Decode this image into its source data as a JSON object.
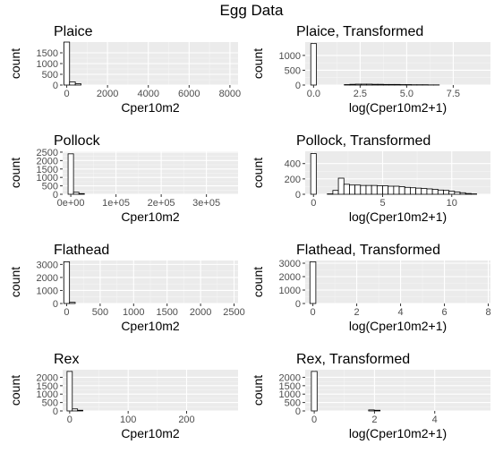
{
  "title": "Egg Data",
  "style": {
    "panel_background": "#ebebeb",
    "grid_major": "#ffffff",
    "grid_minor": "#f5f5f5",
    "bar_fill": "#ffffff",
    "bar_outline": "#000000",
    "tick_text": "#4d4d4d",
    "title_text": "#000000"
  },
  "chart_data": [
    {
      "type": "bar",
      "title": "Plaice",
      "xlabel": "Cper10m2",
      "ylabel": "count",
      "xlim": [
        -200,
        8400
      ],
      "ylim": [
        0,
        2000
      ],
      "xticks": [
        0,
        2000,
        4000,
        6000,
        8000
      ],
      "xtick_labels": [
        "0",
        "2000",
        "4000",
        "6000",
        "8000"
      ],
      "yticks": [
        0,
        500,
        1000,
        1500
      ],
      "ytick_labels": [
        "0",
        "500",
        "1000",
        "1500"
      ],
      "bin_width": 280,
      "x": [
        0,
        280,
        560
      ],
      "values": [
        2000,
        150,
        60
      ]
    },
    {
      "type": "bar",
      "title": "Plaice, Transformed",
      "xlabel": "log(Cper10m2+1)",
      "ylabel": "count",
      "xlim": [
        -0.45,
        9.5
      ],
      "ylim": [
        0,
        1450
      ],
      "xticks": [
        0,
        2.5,
        5,
        7.5
      ],
      "xtick_labels": [
        "0.0",
        "2.5",
        "5.0",
        "7.5"
      ],
      "yticks": [
        0,
        500,
        1000
      ],
      "ytick_labels": [
        "0",
        "500",
        "1000"
      ],
      "bin_width": 0.3,
      "x": [
        0,
        1.8,
        2.1,
        2.4,
        2.7,
        3.0,
        3.3,
        3.6,
        3.9,
        4.2,
        4.5,
        4.8,
        5.1,
        5.4,
        5.7,
        6.0,
        6.3,
        6.6
      ],
      "values": [
        1400,
        15,
        25,
        30,
        30,
        30,
        25,
        25,
        20,
        20,
        20,
        15,
        15,
        10,
        10,
        10,
        5,
        5
      ]
    },
    {
      "type": "bar",
      "title": "Pollock",
      "xlabel": "Cper10m2",
      "ylabel": "count",
      "xlim": [
        -18000,
        370000
      ],
      "ylim": [
        0,
        2550
      ],
      "xticks": [
        0,
        100000,
        200000,
        300000
      ],
      "xtick_labels": [
        "0e+00",
        "1e+05",
        "2e+05",
        "3e+05"
      ],
      "yticks": [
        0,
        500,
        1000,
        1500,
        2000,
        2500
      ],
      "ytick_labels": [
        "0",
        "500",
        "1000",
        "1500",
        "2000",
        "2500"
      ],
      "bin_width": 12000,
      "x": [
        0,
        12000,
        24000
      ],
      "values": [
        2400,
        120,
        40
      ]
    },
    {
      "type": "bar",
      "title": "Pollock, Transformed",
      "xlabel": "log(Cper10m2+1)",
      "ylabel": "count",
      "xlim": [
        -0.6,
        12.8
      ],
      "ylim": [
        0,
        560
      ],
      "xticks": [
        0,
        5,
        10
      ],
      "xtick_labels": [
        "0",
        "5",
        "10"
      ],
      "yticks": [
        0,
        200,
        400
      ],
      "ytick_labels": [
        "0",
        "200",
        "400"
      ],
      "bin_width": 0.4,
      "x": [
        0,
        1.2,
        1.6,
        2.0,
        2.4,
        2.8,
        3.2,
        3.6,
        4.0,
        4.4,
        4.8,
        5.2,
        5.6,
        6.0,
        6.4,
        6.8,
        7.2,
        7.6,
        8.0,
        8.4,
        8.8,
        9.2,
        9.6,
        10.0,
        10.4,
        10.8,
        11.2,
        11.6
      ],
      "values": [
        530,
        5,
        50,
        210,
        130,
        120,
        120,
        115,
        115,
        115,
        110,
        110,
        105,
        105,
        100,
        90,
        85,
        80,
        75,
        70,
        65,
        55,
        50,
        40,
        30,
        20,
        10,
        5
      ]
    },
    {
      "type": "bar",
      "title": "Flathead",
      "xlabel": "Cper10m2",
      "ylabel": "count",
      "xlim": [
        -60,
        2560
      ],
      "ylim": [
        0,
        3300
      ],
      "xticks": [
        0,
        500,
        1000,
        1500,
        2000,
        2500
      ],
      "xtick_labels": [
        "0",
        "500",
        "1000",
        "1500",
        "2000",
        "2500"
      ],
      "yticks": [
        0,
        1000,
        2000,
        3000
      ],
      "ytick_labels": [
        "0",
        "1000",
        "2000",
        "3000"
      ],
      "bin_width": 85,
      "x": [
        0,
        85
      ],
      "values": [
        3200,
        90
      ]
    },
    {
      "type": "bar",
      "title": "Flathead, Transformed",
      "xlabel": "log(Cper10m2+1)",
      "ylabel": "count",
      "xlim": [
        -0.35,
        8.1
      ],
      "ylim": [
        0,
        3200
      ],
      "xticks": [
        0,
        2,
        4,
        6,
        8
      ],
      "xtick_labels": [
        "0",
        "2",
        "4",
        "6",
        "8"
      ],
      "yticks": [
        0,
        1000,
        2000,
        3000
      ],
      "ytick_labels": [
        "0",
        "1000",
        "2000",
        "3000"
      ],
      "bin_width": 0.27,
      "x": [
        0
      ],
      "values": [
        3100
      ]
    },
    {
      "type": "bar",
      "title": "Rex",
      "xlabel": "Cper10m2",
      "ylabel": "count",
      "xlim": [
        -12,
        288
      ],
      "ylim": [
        0,
        2450
      ],
      "xticks": [
        0,
        100,
        200
      ],
      "xtick_labels": [
        "0",
        "100",
        "200"
      ],
      "yticks": [
        0,
        500,
        1000,
        1500,
        2000
      ],
      "ytick_labels": [
        "0",
        "500",
        "1000",
        "1500",
        "2000"
      ],
      "bin_width": 9,
      "x": [
        0,
        9,
        18
      ],
      "values": [
        2350,
        120,
        40
      ]
    },
    {
      "type": "bar",
      "title": "Rex, Transformed",
      "xlabel": "log(Cper10m2+1)",
      "ylabel": "count",
      "xlim": [
        -0.3,
        5.85
      ],
      "ylim": [
        0,
        2450
      ],
      "xticks": [
        0,
        2,
        4
      ],
      "xtick_labels": [
        "0",
        "2",
        "4"
      ],
      "yticks": [
        0,
        500,
        1000,
        1500,
        2000
      ],
      "ytick_labels": [
        "0",
        "500",
        "1000",
        "1500",
        "2000"
      ],
      "bin_width": 0.19,
      "x": [
        0,
        1.9,
        2.09
      ],
      "values": [
        2350,
        60,
        40
      ]
    }
  ]
}
